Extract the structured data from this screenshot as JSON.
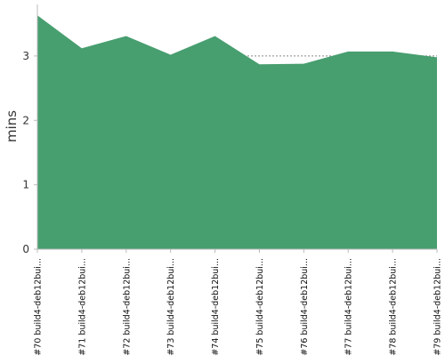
{
  "chart_data": {
    "type": "area",
    "ylabel": "mins",
    "xlabel": "",
    "ylim": [
      0,
      3.8
    ],
    "yticks": [
      "0",
      "1",
      "2",
      "3"
    ],
    "grid": "horizontal dashed",
    "color": "#479e6f",
    "x": [
      "#70 build4-deb12bui...",
      "#71 build4-deb12bui...",
      "#72 build4-deb12bui...",
      "#73 build4-deb12bui...",
      "#74 build4-deb12bui...",
      "#75 build4-deb12bui...",
      "#76 build4-deb12bui...",
      "#77 build4-deb12bui...",
      "#78 build4-deb12bui...",
      "#79 build4-deb12bui..."
    ],
    "values": [
      3.63,
      3.12,
      3.31,
      3.02,
      3.31,
      2.87,
      2.88,
      3.07,
      3.07,
      2.98
    ]
  }
}
